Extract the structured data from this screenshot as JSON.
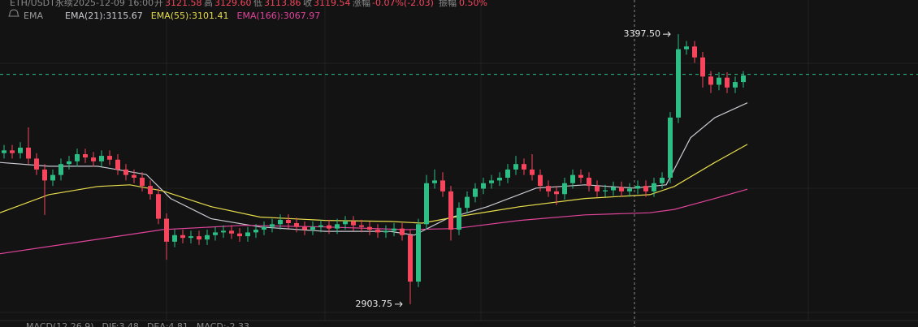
{
  "chart_data": {
    "type": "candlestick",
    "header": [
      "ETH/USDT永续",
      "2025-12-09 16:00",
      "开",
      "3121.58",
      "高",
      "3129.60",
      "低",
      "3113.86",
      "收",
      "3119.54",
      "涨幅",
      "-0.07%(-2.03)",
      "振幅",
      "0.50%"
    ],
    "indicator": "EMA",
    "footer": [
      "MACD(12,26,9)",
      "DIF:3.48",
      "DEA:4.81",
      "MACD:-2.33"
    ],
    "up_color": "#2ebd85",
    "down_color": "#f6465d",
    "xlim": [
      -0.5,
      112.5
    ],
    "ylim": [
      2862,
      3460
    ],
    "open": [
      3180,
      3185,
      3180,
      3190,
      3170,
      3150,
      3130,
      3140,
      3160,
      3165,
      3178,
      3172,
      3165,
      3175,
      3168,
      3150,
      3140,
      3135,
      3120,
      3105,
      3060,
      3018,
      3030,
      3025,
      3028,
      3022,
      3030,
      3035,
      3038,
      3033,
      3028,
      3035,
      3040,
      3045,
      3050,
      3058,
      3052,
      3045,
      3040,
      3045,
      3048,
      3042,
      3050,
      3055,
      3048,
      3045,
      3040,
      3035,
      3038,
      3042,
      3030,
      2945,
      3050,
      3125,
      3130,
      3110,
      3040,
      3080,
      3100,
      3115,
      3125,
      3130,
      3135,
      3150,
      3160,
      3150,
      3140,
      3120,
      3110,
      3105,
      3125,
      3140,
      3135,
      3120,
      3110,
      3112,
      3118,
      3110,
      3115,
      3120,
      3110,
      3125,
      3135,
      3245,
      3370,
      3375,
      3355,
      3320,
      3305,
      3318,
      3300,
      3310
    ],
    "high": [
      3195,
      3195,
      3200,
      3227,
      3180,
      3160,
      3150,
      3170,
      3175,
      3188,
      3188,
      3182,
      3185,
      3185,
      3178,
      3160,
      3150,
      3145,
      3130,
      3115,
      3070,
      3040,
      3040,
      3038,
      3038,
      3040,
      3045,
      3048,
      3048,
      3043,
      3045,
      3050,
      3055,
      3060,
      3068,
      3068,
      3062,
      3055,
      3055,
      3058,
      3058,
      3060,
      3065,
      3065,
      3058,
      3055,
      3050,
      3048,
      3052,
      3052,
      3040,
      3060,
      3140,
      3150,
      3145,
      3120,
      3090,
      3110,
      3125,
      3135,
      3140,
      3145,
      3160,
      3175,
      3170,
      3178,
      3150,
      3130,
      3120,
      3135,
      3150,
      3150,
      3145,
      3130,
      3122,
      3128,
      3128,
      3125,
      3130,
      3130,
      3135,
      3145,
      3255,
      3397.5,
      3385,
      3385,
      3365,
      3330,
      3328,
      3328,
      3320,
      3330
    ],
    "low": [
      3170,
      3170,
      3170,
      3160,
      3140,
      3067,
      3120,
      3130,
      3150,
      3155,
      3162,
      3155,
      3155,
      3158,
      3140,
      3130,
      3125,
      3110,
      3095,
      3050,
      2985,
      3008,
      3015,
      3015,
      3012,
      3012,
      3020,
      3025,
      3023,
      3018,
      3018,
      3025,
      3030,
      3035,
      3040,
      3042,
      3035,
      3030,
      3030,
      3035,
      3032,
      3032,
      3040,
      3038,
      3035,
      3030,
      3025,
      3025,
      3028,
      3020,
      2903.75,
      2935,
      3040,
      3115,
      3100,
      3020,
      3030,
      3070,
      3090,
      3105,
      3115,
      3120,
      3125,
      3140,
      3140,
      3130,
      3110,
      3100,
      3085,
      3095,
      3115,
      3125,
      3110,
      3100,
      3100,
      3102,
      3100,
      3100,
      3105,
      3100,
      3100,
      3115,
      3125,
      3235,
      3360,
      3345,
      3300,
      3290,
      3295,
      3290,
      3290,
      3300
    ],
    "close": [
      3185,
      3180,
      3190,
      3170,
      3150,
      3130,
      3140,
      3160,
      3165,
      3178,
      3172,
      3165,
      3175,
      3168,
      3150,
      3140,
      3135,
      3120,
      3105,
      3060,
      3018,
      3030,
      3025,
      3028,
      3022,
      3030,
      3035,
      3038,
      3033,
      3028,
      3035,
      3040,
      3045,
      3050,
      3058,
      3052,
      3045,
      3040,
      3045,
      3048,
      3042,
      3050,
      3055,
      3048,
      3045,
      3040,
      3035,
      3038,
      3042,
      3030,
      2945,
      3050,
      3125,
      3130,
      3110,
      3040,
      3080,
      3100,
      3115,
      3125,
      3130,
      3135,
      3150,
      3160,
      3150,
      3140,
      3120,
      3110,
      3105,
      3125,
      3140,
      3135,
      3120,
      3110,
      3112,
      3118,
      3110,
      3115,
      3120,
      3110,
      3125,
      3135,
      3245,
      3370,
      3375,
      3355,
      3320,
      3305,
      3318,
      3300,
      3310,
      3322
    ],
    "series": [
      {
        "name": "EMA(21):3115.67",
        "color": "#c9c9d2",
        "x": [
          -0.5,
          5.5,
          11.5,
          17.5,
          20.5,
          25.5,
          31.5,
          39.5,
          47.5,
          50.5,
          54.5,
          59.5,
          65.5,
          71.5,
          77.5,
          81.5,
          84.5,
          87.5,
          91.5
        ],
        "values": [
          3163,
          3156,
          3156,
          3141,
          3097,
          3060,
          3045,
          3037,
          3037,
          3030,
          3060,
          3082,
          3116,
          3122,
          3116,
          3122,
          3208,
          3245,
          3272
        ]
      },
      {
        "name": "EMA(55):3101.41",
        "color": "#e6dc4c",
        "x": [
          -0.5,
          5.5,
          11.5,
          15.5,
          19.5,
          25.5,
          31.5,
          39.5,
          47.5,
          51.5,
          55.5,
          63.5,
          71.5,
          79.5,
          82.5,
          87.5,
          91.5
        ],
        "values": [
          3071,
          3104,
          3119,
          3122,
          3111,
          3082,
          3063,
          3057,
          3055,
          3052,
          3063,
          3082,
          3097,
          3104,
          3119,
          3163,
          3196
        ]
      },
      {
        "name": "EMA(166):3067.97",
        "color": "#e0449c",
        "x": [
          -0.5,
          9.5,
          19.5,
          29.5,
          39.5,
          49.5,
          55.5,
          63.5,
          71.5,
          79.5,
          82.5,
          87.5,
          91.5
        ],
        "values": [
          2996,
          3018,
          3040,
          3048,
          3045,
          3040,
          3042,
          3057,
          3067,
          3071,
          3077,
          3097,
          3114
        ]
      }
    ],
    "annotations": [
      {
        "value": 3397.5,
        "label": "3397.50"
      },
      {
        "value": 2903.75,
        "label": "2903.75"
      }
    ],
    "last_price_line": 3324
  }
}
